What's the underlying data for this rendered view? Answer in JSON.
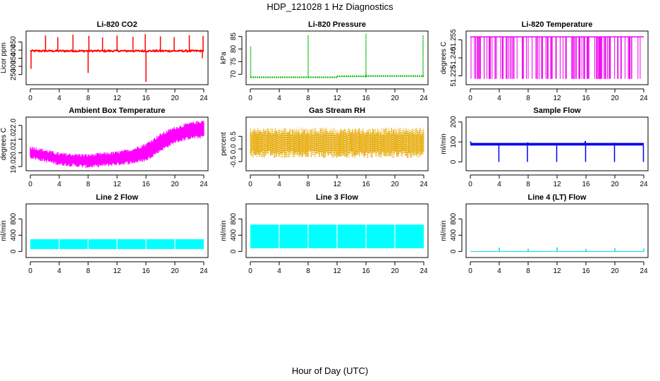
{
  "figure": {
    "title": "HDP_121028  1 Hz Diagnostics",
    "xlabel": "Hour of Day (UTC)"
  },
  "chart_data": [
    {
      "id": "co2",
      "type": "line",
      "title": "Li-820 CO2",
      "ylabel": "Licor ppm",
      "color": "#ff0000",
      "xlim": [
        0,
        24
      ],
      "xticks": [
        0,
        4,
        8,
        12,
        16,
        20,
        24
      ],
      "xtick_labels": [
        "0",
        "4",
        "8",
        "12",
        "16",
        "20",
        "24"
      ],
      "ylim": [
        205,
        500
      ],
      "yticks": [
        250,
        300,
        350,
        400,
        450
      ],
      "ytick_labels": [
        "250",
        "300",
        "350",
        "400",
        "450"
      ],
      "pattern": {
        "kind": "baseline_spikes",
        "base": 395,
        "noise": 5,
        "up_spikes": [
          [
            2.1,
            490
          ],
          [
            3.8,
            480
          ],
          [
            5.9,
            495
          ],
          [
            8.1,
            488
          ],
          [
            10.0,
            478
          ],
          [
            12.0,
            490
          ],
          [
            14.2,
            482
          ],
          [
            15.9,
            498
          ],
          [
            18.0,
            485
          ],
          [
            19.9,
            480
          ],
          [
            22.0,
            492
          ],
          [
            23.9,
            488
          ]
        ],
        "down_spikes": [
          [
            0.1,
            285
          ],
          [
            8.0,
            260
          ],
          [
            16.0,
            205
          ],
          [
            23.8,
            350
          ]
        ]
      }
    },
    {
      "id": "pressure",
      "type": "line",
      "title": "Li-820 Pressure",
      "ylabel": "kPa",
      "color": "#00bb00",
      "xlim": [
        0,
        24
      ],
      "xticks": [
        0,
        4,
        8,
        12,
        16,
        20,
        24
      ],
      "xtick_labels": [
        "0",
        "4",
        "8",
        "12",
        "16",
        "20",
        "24"
      ],
      "ylim": [
        67,
        86
      ],
      "yticks": [
        70,
        75,
        80,
        85
      ],
      "ytick_labels": [
        "70",
        "75",
        "80",
        "85"
      ],
      "pattern": {
        "kind": "steps_spikes",
        "segments": [
          [
            0,
            8,
            68.8
          ],
          [
            8,
            12,
            68.8
          ],
          [
            12,
            16,
            69.2
          ],
          [
            16,
            24,
            69.3
          ]
        ],
        "up_spikes": [
          [
            0.05,
            81
          ],
          [
            8.0,
            85.5
          ],
          [
            16.0,
            86
          ],
          [
            23.9,
            85.5
          ]
        ]
      }
    },
    {
      "id": "licor_temp",
      "type": "line",
      "title": "Li-820 Temperature",
      "ylabel": "degrees C",
      "color": "#ee00ee",
      "xlim": [
        0,
        24
      ],
      "xticks": [
        0,
        4,
        8,
        12,
        16,
        20,
        24
      ],
      "xtick_labels": [
        "0",
        "4",
        "8",
        "12",
        "16",
        "20",
        "24"
      ],
      "ylim": [
        51.22,
        51.26
      ],
      "yticks": [
        51.225,
        51.24,
        51.255
      ],
      "ytick_labels": [
        "51.225",
        "51.240",
        "51.255"
      ],
      "pattern": {
        "kind": "bistable",
        "low": 51.2225,
        "high": 51.2575,
        "density_end": 22.5
      }
    },
    {
      "id": "box_temp",
      "type": "area",
      "title": "Ambient Box Temperature",
      "ylabel": "degrees C",
      "color": "#ff00ff",
      "xlim": [
        0,
        24
      ],
      "xticks": [
        0,
        4,
        8,
        12,
        16,
        20,
        24
      ],
      "xtick_labels": [
        "0",
        "4",
        "8",
        "12",
        "16",
        "20",
        "24"
      ],
      "ylim": [
        18.9,
        22.4
      ],
      "yticks": [
        19.0,
        20.0,
        21.0,
        22.0
      ],
      "ytick_labels": [
        "19.0",
        "20.0",
        "21.0",
        "22.0"
      ],
      "pattern": {
        "kind": "band",
        "lower": [
          [
            0,
            19.7
          ],
          [
            4,
            19.2
          ],
          [
            8,
            19.0
          ],
          [
            12,
            19.2
          ],
          [
            14,
            19.3
          ],
          [
            16,
            19.5
          ],
          [
            18,
            20.2
          ],
          [
            20,
            20.8
          ],
          [
            22,
            21.1
          ],
          [
            24,
            21.2
          ]
        ],
        "upper": [
          [
            0,
            20.4
          ],
          [
            4,
            19.9
          ],
          [
            8,
            19.8
          ],
          [
            12,
            20.0
          ],
          [
            14,
            20.2
          ],
          [
            16,
            20.6
          ],
          [
            18,
            21.3
          ],
          [
            20,
            21.8
          ],
          [
            22,
            22.1
          ],
          [
            24,
            22.3
          ]
        ]
      }
    },
    {
      "id": "rh",
      "type": "area",
      "title": "Gas Stream RH",
      "ylabel": "percent",
      "color": "#e6a800",
      "xlim": [
        0,
        24
      ],
      "xticks": [
        0,
        4,
        8,
        12,
        16,
        20,
        24
      ],
      "xtick_labels": [
        "0",
        "4",
        "8",
        "12",
        "16",
        "20",
        "24"
      ],
      "ylim": [
        -0.75,
        1.15
      ],
      "yticks": [
        -0.5,
        0.0,
        0.5
      ],
      "ytick_labels": [
        "-0.5",
        "0.0",
        "0.5"
      ],
      "pattern": {
        "kind": "noise_band",
        "center": 0.25,
        "half_width": 0.5,
        "max": 1.0,
        "min": -0.65
      }
    },
    {
      "id": "sample_flow",
      "type": "line",
      "title": "Sample Flow",
      "ylabel": "ml/min",
      "color": "#0000ee",
      "xlim": [
        0,
        24
      ],
      "xticks": [
        0,
        4,
        8,
        12,
        16,
        20,
        24
      ],
      "xtick_labels": [
        "0",
        "4",
        "8",
        "12",
        "16",
        "20",
        "24"
      ],
      "ylim": [
        -30,
        210
      ],
      "yticks": [
        0,
        100,
        200
      ],
      "ytick_labels": [
        "0",
        "100",
        "200"
      ],
      "pattern": {
        "kind": "band_drops",
        "low": 82,
        "high": 95,
        "drops": [
          [
            3.95,
            0
          ],
          [
            7.9,
            0
          ],
          [
            11.95,
            0
          ],
          [
            15.95,
            0
          ],
          [
            19.95,
            0
          ],
          [
            23.95,
            0
          ]
        ],
        "up_spikes": [
          [
            0.05,
            102
          ],
          [
            7.95,
            98
          ],
          [
            15.9,
            104
          ],
          [
            19.9,
            96
          ]
        ]
      }
    },
    {
      "id": "line2_flow",
      "type": "area",
      "title": "Line 2 Flow",
      "ylabel": "ml/min",
      "color": "#00ffff",
      "xlim": [
        0,
        24
      ],
      "xticks": [
        0,
        4,
        8,
        12,
        16,
        20,
        24
      ],
      "xtick_labels": [
        "0",
        "4",
        "8",
        "12",
        "16",
        "20",
        "24"
      ],
      "ylim": [
        -80,
        1100
      ],
      "yticks": [
        0,
        400,
        800
      ],
      "ytick_labels": [
        "0",
        "400",
        "800"
      ],
      "pattern": {
        "kind": "block",
        "low": 60,
        "high": 300,
        "gaps": [
          4,
          8,
          12,
          16,
          20
        ]
      }
    },
    {
      "id": "line3_flow",
      "type": "area",
      "title": "Line 3 Flow",
      "ylabel": "ml/min",
      "color": "#00ffff",
      "xlim": [
        0,
        24
      ],
      "xticks": [
        0,
        4,
        8,
        12,
        16,
        20,
        24
      ],
      "xtick_labels": [
        "0",
        "4",
        "8",
        "12",
        "16",
        "20",
        "24"
      ],
      "ylim": [
        -80,
        1100
      ],
      "yticks": [
        0,
        400,
        800
      ],
      "ytick_labels": [
        "0",
        "400",
        "800"
      ],
      "pattern": {
        "kind": "block",
        "low": 80,
        "high": 660,
        "gaps": [
          4,
          8,
          12,
          16,
          20
        ]
      }
    },
    {
      "id": "line4_flow",
      "type": "line",
      "title": "Line 4 (LT) Flow",
      "ylabel": "ml/min",
      "color": "#00dddd",
      "xlim": [
        0,
        24
      ],
      "xticks": [
        0,
        4,
        8,
        12,
        16,
        20,
        24
      ],
      "xtick_labels": [
        "0",
        "4",
        "8",
        "12",
        "16",
        "20",
        "24"
      ],
      "ylim": [
        -80,
        1100
      ],
      "yticks": [
        0,
        400,
        800
      ],
      "ytick_labels": [
        "0",
        "400",
        "800"
      ],
      "pattern": {
        "kind": "baseline_spikes",
        "base": 0,
        "noise": 0,
        "up_spikes": [
          [
            4.0,
            95
          ],
          [
            8.0,
            70
          ],
          [
            12.0,
            100
          ],
          [
            16.0,
            65
          ],
          [
            20.0,
            85
          ],
          [
            24.0,
            70
          ]
        ],
        "down_spikes": []
      }
    }
  ]
}
